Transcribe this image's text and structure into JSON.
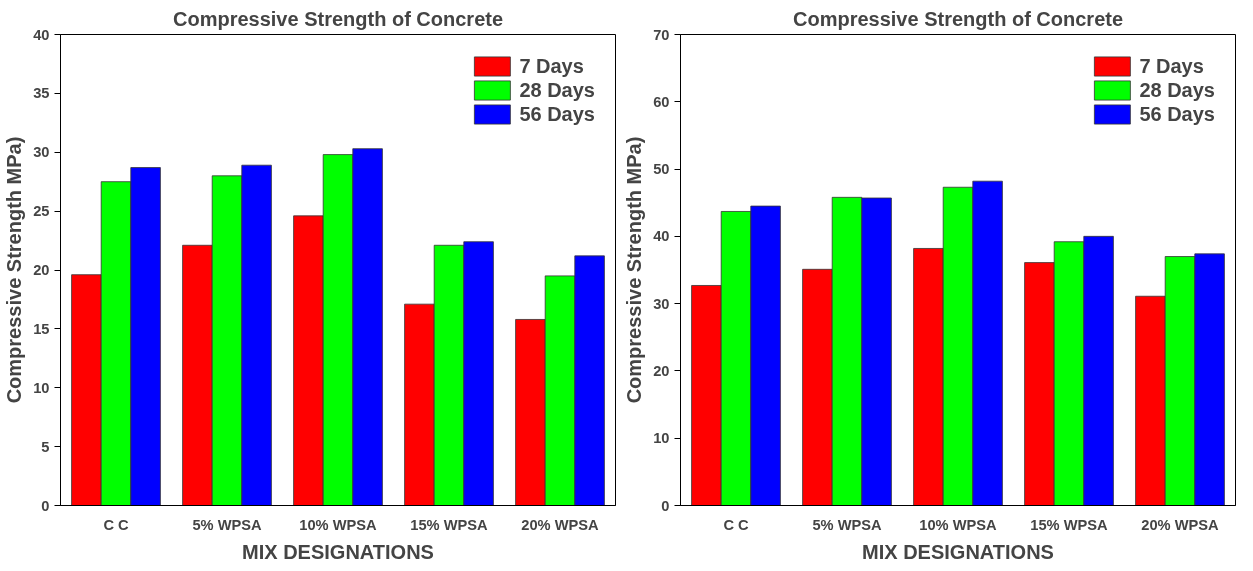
{
  "chart_data": [
    {
      "type": "bar",
      "title": "Compressive Strength of Concrete",
      "xlabel": "MIX DESIGNATIONS",
      "ylabel": "Compressive Strength MPa)",
      "categories": [
        "C C",
        "5% WPSA",
        "10% WPSA",
        "15% WPSA",
        "20% WPSA"
      ],
      "ylim": [
        0,
        40
      ],
      "yticks": [
        0,
        5,
        10,
        15,
        20,
        25,
        30,
        35,
        40
      ],
      "grid": false,
      "legend": "top right",
      "series": [
        {
          "name": "7 Days",
          "color": "#ff0000",
          "values": [
            19.6,
            22.1,
            24.6,
            17.1,
            15.8
          ]
        },
        {
          "name": "28 Days",
          "color": "#00ff00",
          "values": [
            27.5,
            28.0,
            29.8,
            22.1,
            19.5
          ]
        },
        {
          "name": "56 Days",
          "color": "#0000ff",
          "values": [
            28.7,
            28.9,
            30.3,
            22.4,
            21.2
          ]
        }
      ]
    },
    {
      "type": "bar",
      "title": "Compressive Strength of Concrete",
      "xlabel": "MIX DESIGNATIONS",
      "ylabel": "Compressive Strength MPa)",
      "categories": [
        "C C",
        "5% WPSA",
        "10% WPSA",
        "15% WPSA",
        "20% WPSA"
      ],
      "ylim": [
        0,
        70
      ],
      "yticks": [
        0,
        10,
        20,
        30,
        40,
        50,
        60,
        70
      ],
      "grid": false,
      "legend": "top right",
      "series": [
        {
          "name": "7 Days",
          "color": "#ff0000",
          "values": [
            32.7,
            35.1,
            38.2,
            36.1,
            31.1
          ]
        },
        {
          "name": "28 Days",
          "color": "#00ff00",
          "values": [
            43.7,
            45.8,
            47.3,
            39.2,
            37.0
          ]
        },
        {
          "name": "56 Days",
          "color": "#0000ff",
          "values": [
            44.5,
            45.7,
            48.2,
            40.0,
            37.4
          ]
        }
      ]
    }
  ]
}
